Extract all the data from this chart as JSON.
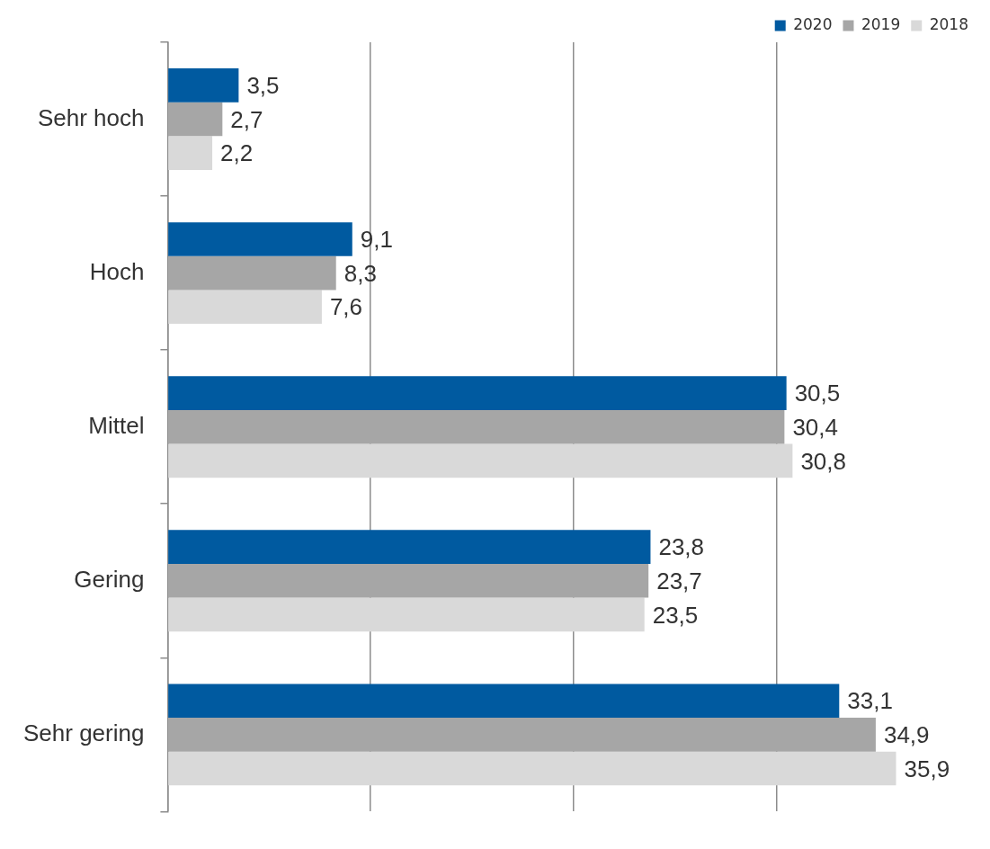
{
  "chart_data": {
    "type": "bar",
    "orientation": "horizontal",
    "categories": [
      "Sehr hoch",
      "Hoch",
      "Mittel",
      "Gering",
      "Sehr gering"
    ],
    "series": [
      {
        "name": "2020",
        "color": "#005aa0",
        "values": [
          3.5,
          9.1,
          30.5,
          23.8,
          33.1
        ],
        "value_labels": [
          "3,5",
          "9,1",
          "30,5",
          "23,8",
          "33,1"
        ]
      },
      {
        "name": "2019",
        "color": "#a6a6a6",
        "values": [
          2.7,
          8.3,
          30.4,
          23.7,
          34.9
        ],
        "value_labels": [
          "2,7",
          "8,3",
          "30,4",
          "23,7",
          "34,9"
        ]
      },
      {
        "name": "2018",
        "color": "#d9d9d9",
        "values": [
          2.2,
          7.6,
          30.8,
          23.5,
          35.9
        ],
        "value_labels": [
          "2,2",
          "7,6",
          "30,8",
          "23,5",
          "35,9"
        ]
      }
    ],
    "xticks": [
      {
        "value": 0,
        "label": null
      },
      {
        "value": 10,
        "label": null
      },
      {
        "value": 20,
        "label": null
      },
      {
        "value": 30,
        "label": null
      }
    ],
    "grid": "x",
    "legend": "top right",
    "tick_labels": "y"
  }
}
